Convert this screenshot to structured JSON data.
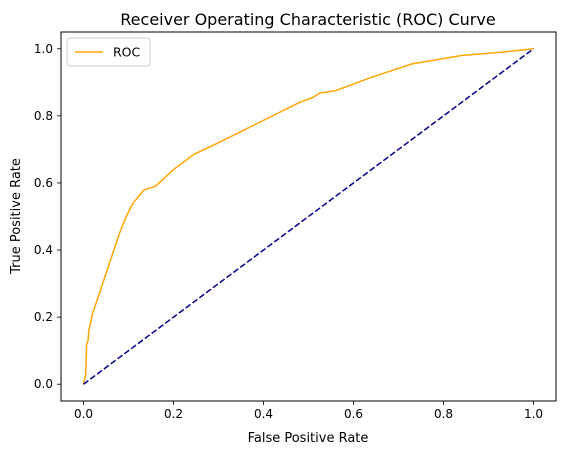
{
  "chart_data": {
    "type": "line",
    "title": "Receiver Operating Characteristic (ROC) Curve",
    "xlabel": "False Positive Rate",
    "ylabel": "True Positive Rate",
    "xlim": [
      -0.05,
      1.05
    ],
    "ylim": [
      -0.05,
      1.05
    ],
    "xticks": [
      0.0,
      0.2,
      0.4,
      0.6,
      0.8,
      1.0
    ],
    "yticks": [
      0.0,
      0.2,
      0.4,
      0.6,
      0.8,
      1.0
    ],
    "xtick_labels": [
      "0.0",
      "0.2",
      "0.4",
      "0.6",
      "0.8",
      "1.0"
    ],
    "ytick_labels": [
      "0.0",
      "0.2",
      "0.4",
      "0.6",
      "0.8",
      "1.0"
    ],
    "grid": false,
    "legend_position": "upper-left",
    "series": [
      {
        "name": "ROC",
        "color": "#ffa500",
        "style": "solid",
        "x": [
          0.0,
          0.005,
          0.007,
          0.01,
          0.012,
          0.02,
          0.04,
          0.06,
          0.08,
          0.095,
          0.11,
          0.135,
          0.16,
          0.2,
          0.245,
          0.3,
          0.36,
          0.42,
          0.48,
          0.51,
          0.525,
          0.56,
          0.64,
          0.73,
          0.84,
          0.93,
          1.0
        ],
        "y": [
          0.0,
          0.03,
          0.12,
          0.13,
          0.16,
          0.21,
          0.29,
          0.37,
          0.45,
          0.5,
          0.54,
          0.58,
          0.59,
          0.64,
          0.685,
          0.72,
          0.76,
          0.8,
          0.84,
          0.855,
          0.868,
          0.875,
          0.915,
          0.955,
          0.98,
          0.99,
          1.0
        ]
      },
      {
        "name": "",
        "color": "#00008b",
        "style": "dashed",
        "x": [
          0.0,
          1.0
        ],
        "y": [
          0.0,
          1.0
        ]
      }
    ]
  }
}
